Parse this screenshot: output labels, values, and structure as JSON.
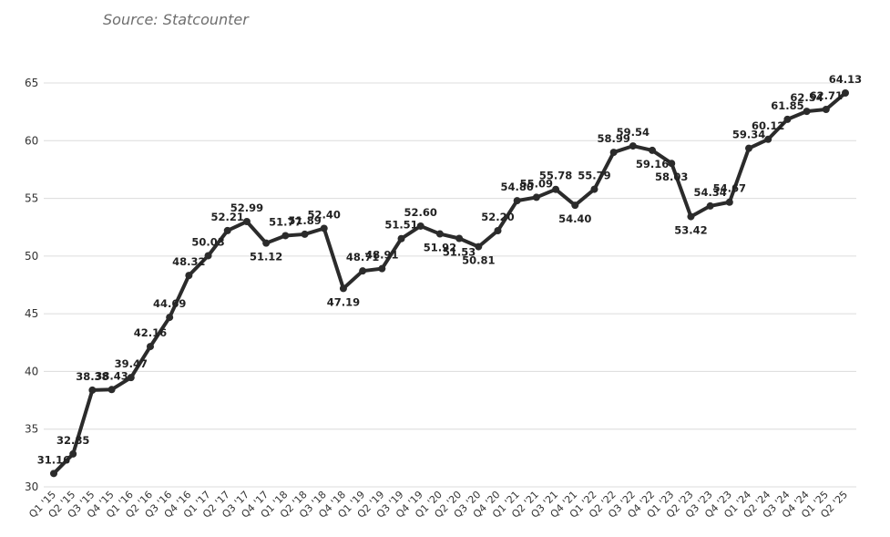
{
  "source": "Source: Statcounter",
  "chart_data": {
    "type": "line",
    "title": "",
    "xlabel": "",
    "ylabel": "",
    "ylim": [
      30,
      65
    ],
    "yticks": [
      30,
      35,
      40,
      45,
      50,
      55,
      60,
      65
    ],
    "grid": true,
    "colors": {
      "line": "#2b2b2b",
      "grid": "#dcdcdc"
    },
    "categories": [
      "Q1 '15",
      "Q2 '15",
      "Q3 '15",
      "Q4 '15",
      "Q1 '16",
      "Q2 '16",
      "Q3 '16",
      "Q4 '16",
      "Q1 '17",
      "Q2 '17",
      "Q3 '17",
      "Q4 '17",
      "Q1 '18",
      "Q2 '18",
      "Q3 '18",
      "Q4 '18",
      "Q1 '19",
      "Q2 '19",
      "Q3 '19",
      "Q4 '19",
      "Q1 '20",
      "Q2 '20",
      "Q3 '20",
      "Q4 '20",
      "Q1 '21",
      "Q2 '21",
      "Q3 '21",
      "Q4 '21",
      "Q1 '22",
      "Q2 '22",
      "Q3 '22",
      "Q4 '22",
      "Q1 '23",
      "Q2 '23",
      "Q3 '23",
      "Q4 '23",
      "Q1 '24",
      "Q2 '24",
      "Q3 '24",
      "Q4 '24",
      "Q1 '25",
      "Q2 '25"
    ],
    "values": [
      31.16,
      32.85,
      38.38,
      38.43,
      39.47,
      42.16,
      44.69,
      48.32,
      50.03,
      52.21,
      52.99,
      51.12,
      51.77,
      51.89,
      52.4,
      47.19,
      48.71,
      48.91,
      51.51,
      52.6,
      51.92,
      51.53,
      50.81,
      52.2,
      54.8,
      55.09,
      55.78,
      54.4,
      55.79,
      58.99,
      59.54,
      59.16,
      58.03,
      53.42,
      54.34,
      54.67,
      59.34,
      60.12,
      61.85,
      62.54,
      62.71,
      64.13
    ],
    "labels": [
      "31.16",
      "32.85",
      "38.38",
      "38.43",
      "39.47",
      "42.16",
      "44.69",
      "48.32",
      "50.03",
      "52.21",
      "52.99",
      "51.12",
      "51.77",
      "51.89",
      "52.40",
      "47.19",
      "48.71",
      "48.91",
      "51.51",
      "52.60",
      "51.92",
      "51.53",
      "50.81",
      "52.20",
      "54.80",
      "55.09",
      "55.78",
      "54.40",
      "55.79",
      "58.99",
      "59.54",
      "59.16",
      "58.03",
      "53.42",
      "54.34",
      "54.67",
      "59.34",
      "60.12",
      "61.85",
      "62.54",
      "62.71",
      "64.13"
    ]
  }
}
